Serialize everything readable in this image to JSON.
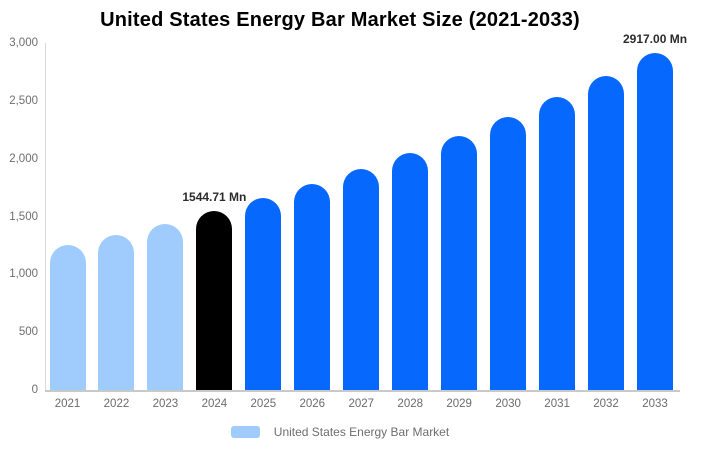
{
  "title": "United States Energy Bar Market Size (2021-2033)",
  "legend": {
    "label": "United States Energy Bar Market",
    "swatch_color": "#9fccfc"
  },
  "colors": {
    "historical_bar": "#9fccfc",
    "highlight_bar": "#000000",
    "forecast_bar": "#0668fc",
    "axis_line": "#d9d9d9",
    "baseline": "#c9c9c9",
    "tick_text": "#6e6e6e",
    "value_label_text": "#2b2b2b",
    "background": "#ffffff"
  },
  "chart_data": {
    "type": "bar",
    "title": "United States Energy Bar Market Size (2021-2033)",
    "xlabel": "",
    "ylabel": "",
    "unit": "Mn",
    "categories": [
      "2021",
      "2022",
      "2023",
      "2024",
      "2025",
      "2026",
      "2027",
      "2028",
      "2029",
      "2030",
      "2031",
      "2032",
      "2033"
    ],
    "values": [
      1250,
      1341,
      1439,
      1544.71,
      1658,
      1779,
      1909,
      2049,
      2199,
      2360,
      2533,
      2718,
      2917
    ],
    "bar_colors": [
      "#9fccfc",
      "#9fccfc",
      "#9fccfc",
      "#000000",
      "#0668fc",
      "#0668fc",
      "#0668fc",
      "#0668fc",
      "#0668fc",
      "#0668fc",
      "#0668fc",
      "#0668fc",
      "#0668fc"
    ],
    "annotations": [
      {
        "index": 3,
        "text": "1544.71 Mn"
      },
      {
        "index": 12,
        "text": "2917.00 Mn"
      }
    ],
    "ylim": [
      0,
      3000
    ],
    "yticks": [
      {
        "value": 0,
        "label": "0"
      },
      {
        "value": 500,
        "label": "500"
      },
      {
        "value": 1000,
        "label": "1,000"
      },
      {
        "value": 1500,
        "label": "1,500"
      },
      {
        "value": 2000,
        "label": "2,000"
      },
      {
        "value": 2500,
        "label": "2,500"
      },
      {
        "value": 3000,
        "label": "3,000"
      }
    ],
    "grid": false,
    "legend_position": "bottom"
  }
}
